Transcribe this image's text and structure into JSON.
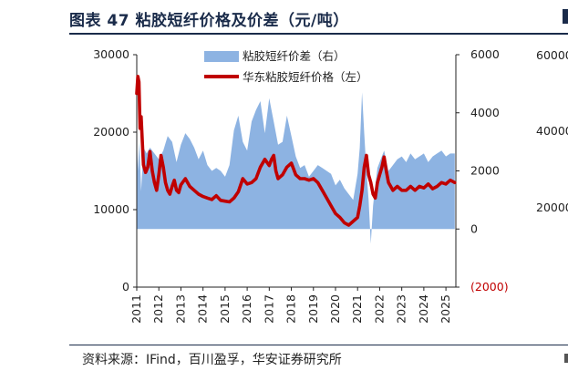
{
  "title": "图表 47 粘胶短纤价格及价差（元/吨）",
  "source": "资料来源：IFind，百川盈孚，华安证券研究所",
  "colors": {
    "price_line": "#c00000",
    "spread_area": "#8db3e2",
    "title": "#1a2b4a",
    "negative_tick": "#c00000"
  },
  "chart_data": {
    "type": "line",
    "title": "图表 47 粘胶短纤价格及价差（元/吨）",
    "x": [
      "2011",
      "2012",
      "2013",
      "2014",
      "2015",
      "2016",
      "2017",
      "2018",
      "2019",
      "2020",
      "2021",
      "2022",
      "2023",
      "2024",
      "2025"
    ],
    "left_axis": {
      "ylim": [
        0,
        30000
      ],
      "ticks": [
        "0",
        "10000",
        "20000",
        "30000"
      ]
    },
    "right_axis": {
      "ylim": [
        -2000,
        6000
      ],
      "ticks": [
        "(2000)",
        "0",
        "2000",
        "4000",
        "6000"
      ]
    },
    "legend_position": "top-center",
    "series": [
      {
        "name": "粘胶短纤价差（右）",
        "kind": "area",
        "axis": "right",
        "x": [
          2011.0,
          2011.05,
          2011.12,
          2011.2,
          2011.3,
          2011.45,
          2011.6,
          2011.8,
          2012.0,
          2012.2,
          2012.4,
          2012.6,
          2012.8,
          2013.0,
          2013.2,
          2013.4,
          2013.6,
          2013.8,
          2014.0,
          2014.2,
          2014.4,
          2014.6,
          2014.8,
          2015.0,
          2015.2,
          2015.4,
          2015.6,
          2015.8,
          2016.0,
          2016.2,
          2016.4,
          2016.6,
          2016.8,
          2017.0,
          2017.2,
          2017.4,
          2017.6,
          2017.8,
          2018.0,
          2018.2,
          2018.4,
          2018.6,
          2018.8,
          2019.0,
          2019.2,
          2019.4,
          2019.6,
          2019.8,
          2020.0,
          2020.2,
          2020.4,
          2020.6,
          2020.8,
          2021.0,
          2021.1,
          2021.2,
          2021.3,
          2021.4,
          2021.5,
          2021.6,
          2021.7,
          2021.8,
          2021.9,
          2022.0,
          2022.2,
          2022.4,
          2022.6,
          2022.8,
          2023.0,
          2023.2,
          2023.4,
          2023.6,
          2023.8,
          2024.0,
          2024.2,
          2024.4,
          2024.6,
          2024.8,
          2025.0,
          2025.2,
          2025.4
        ],
        "values": [
          3200,
          2000,
          3000,
          1300,
          2800,
          2600,
          2800,
          2600,
          2400,
          2700,
          3200,
          3000,
          2300,
          2900,
          3300,
          3100,
          2800,
          2400,
          2700,
          2200,
          2000,
          2100,
          2000,
          1800,
          2200,
          3400,
          3900,
          3000,
          2700,
          3700,
          4100,
          4400,
          3300,
          4500,
          3700,
          2900,
          3000,
          3900,
          3200,
          2500,
          2100,
          2200,
          1800,
          2000,
          2200,
          2100,
          2000,
          1900,
          1500,
          1700,
          1400,
          1200,
          1000,
          1900,
          2800,
          4700,
          3300,
          2000,
          1000,
          -500,
          800,
          1500,
          2100,
          2300,
          2700,
          2000,
          2200,
          2400,
          2500,
          2300,
          2600,
          2400,
          2500,
          2600,
          2300,
          2500,
          2600,
          2700,
          2500,
          2600,
          2600
        ]
      },
      {
        "name": "华东粘胶短纤价格（左）",
        "kind": "line",
        "axis": "left",
        "x": [
          2011.0,
          2011.05,
          2011.1,
          2011.15,
          2011.2,
          2011.3,
          2011.4,
          2011.5,
          2011.6,
          2011.7,
          2011.8,
          2011.9,
          2012.0,
          2012.1,
          2012.2,
          2012.3,
          2012.4,
          2012.5,
          2012.6,
          2012.7,
          2012.8,
          2012.9,
          2013.0,
          2013.2,
          2013.4,
          2013.6,
          2013.8,
          2014.0,
          2014.2,
          2014.4,
          2014.6,
          2014.8,
          2015.0,
          2015.2,
          2015.4,
          2015.6,
          2015.8,
          2016.0,
          2016.2,
          2016.4,
          2016.6,
          2016.8,
          2017.0,
          2017.1,
          2017.2,
          2017.3,
          2017.4,
          2017.6,
          2017.8,
          2018.0,
          2018.2,
          2018.4,
          2018.6,
          2018.8,
          2019.0,
          2019.2,
          2019.4,
          2019.6,
          2019.8,
          2020.0,
          2020.2,
          2020.4,
          2020.6,
          2020.8,
          2021.0,
          2021.1,
          2021.2,
          2021.3,
          2021.4,
          2021.5,
          2021.6,
          2021.7,
          2021.8,
          2021.9,
          2022.0,
          2022.1,
          2022.2,
          2022.3,
          2022.4,
          2022.6,
          2022.8,
          2023.0,
          2023.2,
          2023.4,
          2023.6,
          2023.8,
          2024.0,
          2024.2,
          2024.4,
          2024.6,
          2024.8,
          2025.0,
          2025.2,
          2025.4
        ],
        "values": [
          25000,
          27200,
          26500,
          20500,
          22000,
          15800,
          14800,
          15500,
          17500,
          15000,
          13500,
          12500,
          14500,
          17000,
          15500,
          13500,
          12500,
          12000,
          13000,
          13800,
          12500,
          12200,
          13200,
          14000,
          13000,
          12500,
          12000,
          11700,
          11500,
          11300,
          11800,
          11200,
          11100,
          11000,
          11500,
          12300,
          14000,
          13300,
          13500,
          14000,
          15500,
          16500,
          15700,
          16500,
          17000,
          15000,
          14000,
          14500,
          15500,
          16000,
          14500,
          14000,
          14000,
          13800,
          14000,
          13500,
          12500,
          11500,
          10500,
          9500,
          9000,
          8300,
          8000,
          8500,
          9000,
          10500,
          12500,
          15500,
          17000,
          14500,
          13500,
          12000,
          11500,
          13500,
          14500,
          15500,
          16800,
          15000,
          13500,
          12500,
          13000,
          12500,
          12500,
          13000,
          12500,
          13000,
          12800,
          13300,
          12700,
          13000,
          13500,
          13300,
          13800,
          13500
        ]
      }
    ]
  }
}
